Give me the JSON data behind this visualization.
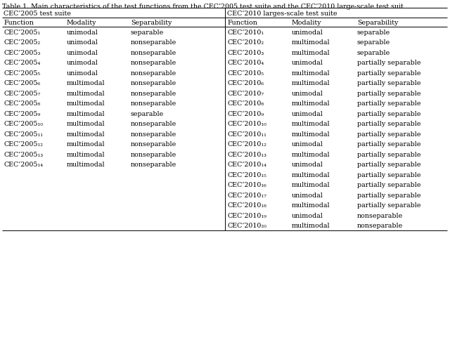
{
  "title": "Table 1. Main characteristics of the test functions from the CEC’2005 test suite and the CEC’2010 large-scale test suit",
  "left_suite_header": "CEC’2005 test suite",
  "right_suite_header": "CEC’2010 larges-scale test suite",
  "col_headers_left": [
    "Function",
    "Modality",
    "Separability"
  ],
  "col_headers_right": [
    "Function",
    "Modality",
    "Separability"
  ],
  "left_data": [
    [
      "CEC’2005₁",
      "unimodal",
      "separable"
    ],
    [
      "CEC’2005₂",
      "unimodal",
      "nonseparable"
    ],
    [
      "CEC’2005₃",
      "unimodal",
      "nonseparable"
    ],
    [
      "CEC’2005₄",
      "unimodal",
      "nonseparable"
    ],
    [
      "CEC’2005₅",
      "unimodal",
      "nonseparable"
    ],
    [
      "CEC’2005₆",
      "multimodal",
      "nonseparable"
    ],
    [
      "CEC’2005₇",
      "multimodal",
      "nonseparable"
    ],
    [
      "CEC’2005₈",
      "multimodal",
      "nonseparable"
    ],
    [
      "CEC’2005₉",
      "multimodal",
      "separable"
    ],
    [
      "CEC’2005₁₀",
      "multimodal",
      "nonseparable"
    ],
    [
      "CEC’2005₁₁",
      "multimodal",
      "nonseparable"
    ],
    [
      "CEC’2005₁₂",
      "multimodal",
      "nonseparable"
    ],
    [
      "CEC’2005₁₃",
      "multimodal",
      "nonseparable"
    ],
    [
      "CEC’2005₁₄",
      "multimodal",
      "nonseparable"
    ]
  ],
  "right_data": [
    [
      "CEC’2010₁",
      "unimodal",
      "separable"
    ],
    [
      "CEC’2010₂",
      "multimodal",
      "separable"
    ],
    [
      "CEC’2010₃",
      "multimodal",
      "separable"
    ],
    [
      "CEC’2010₄",
      "unimodal",
      "partially separable"
    ],
    [
      "CEC’2010₅",
      "multimodal",
      "partially separable"
    ],
    [
      "CEC’2010₆",
      "multimodal",
      "partially separable"
    ],
    [
      "CEC’2010₇",
      "unimodal",
      "partially separable"
    ],
    [
      "CEC’2010₈",
      "multimodal",
      "partially separable"
    ],
    [
      "CEC’2010₉",
      "unimodal",
      "partially separable"
    ],
    [
      "CEC’2010₁₀",
      "multimodal",
      "partially separable"
    ],
    [
      "CEC’2010₁₁",
      "multimodal",
      "partially separable"
    ],
    [
      "CEC’2010₁₂",
      "unimodal",
      "partially separable"
    ],
    [
      "CEC’2010₁₃",
      "multimodal",
      "partially separable"
    ],
    [
      "CEC’2010₁₄",
      "unimodal",
      "partially separable"
    ],
    [
      "CEC’2010₁₅",
      "multimodal",
      "partially separable"
    ],
    [
      "CEC’2010₁₆",
      "multimodal",
      "partially separable"
    ],
    [
      "CEC’2010₁₇",
      "unimodal",
      "partially separable"
    ],
    [
      "CEC’2010₁₈",
      "multimodal",
      "partially separable"
    ],
    [
      "CEC’2010₁₉",
      "unimodal",
      "nonseparable"
    ],
    [
      "CEC’2010₂₀",
      "multimodal",
      "nonseparable"
    ]
  ],
  "bg_color": "white",
  "text_color": "black",
  "font_size": 6.8,
  "title_font_size": 6.8
}
